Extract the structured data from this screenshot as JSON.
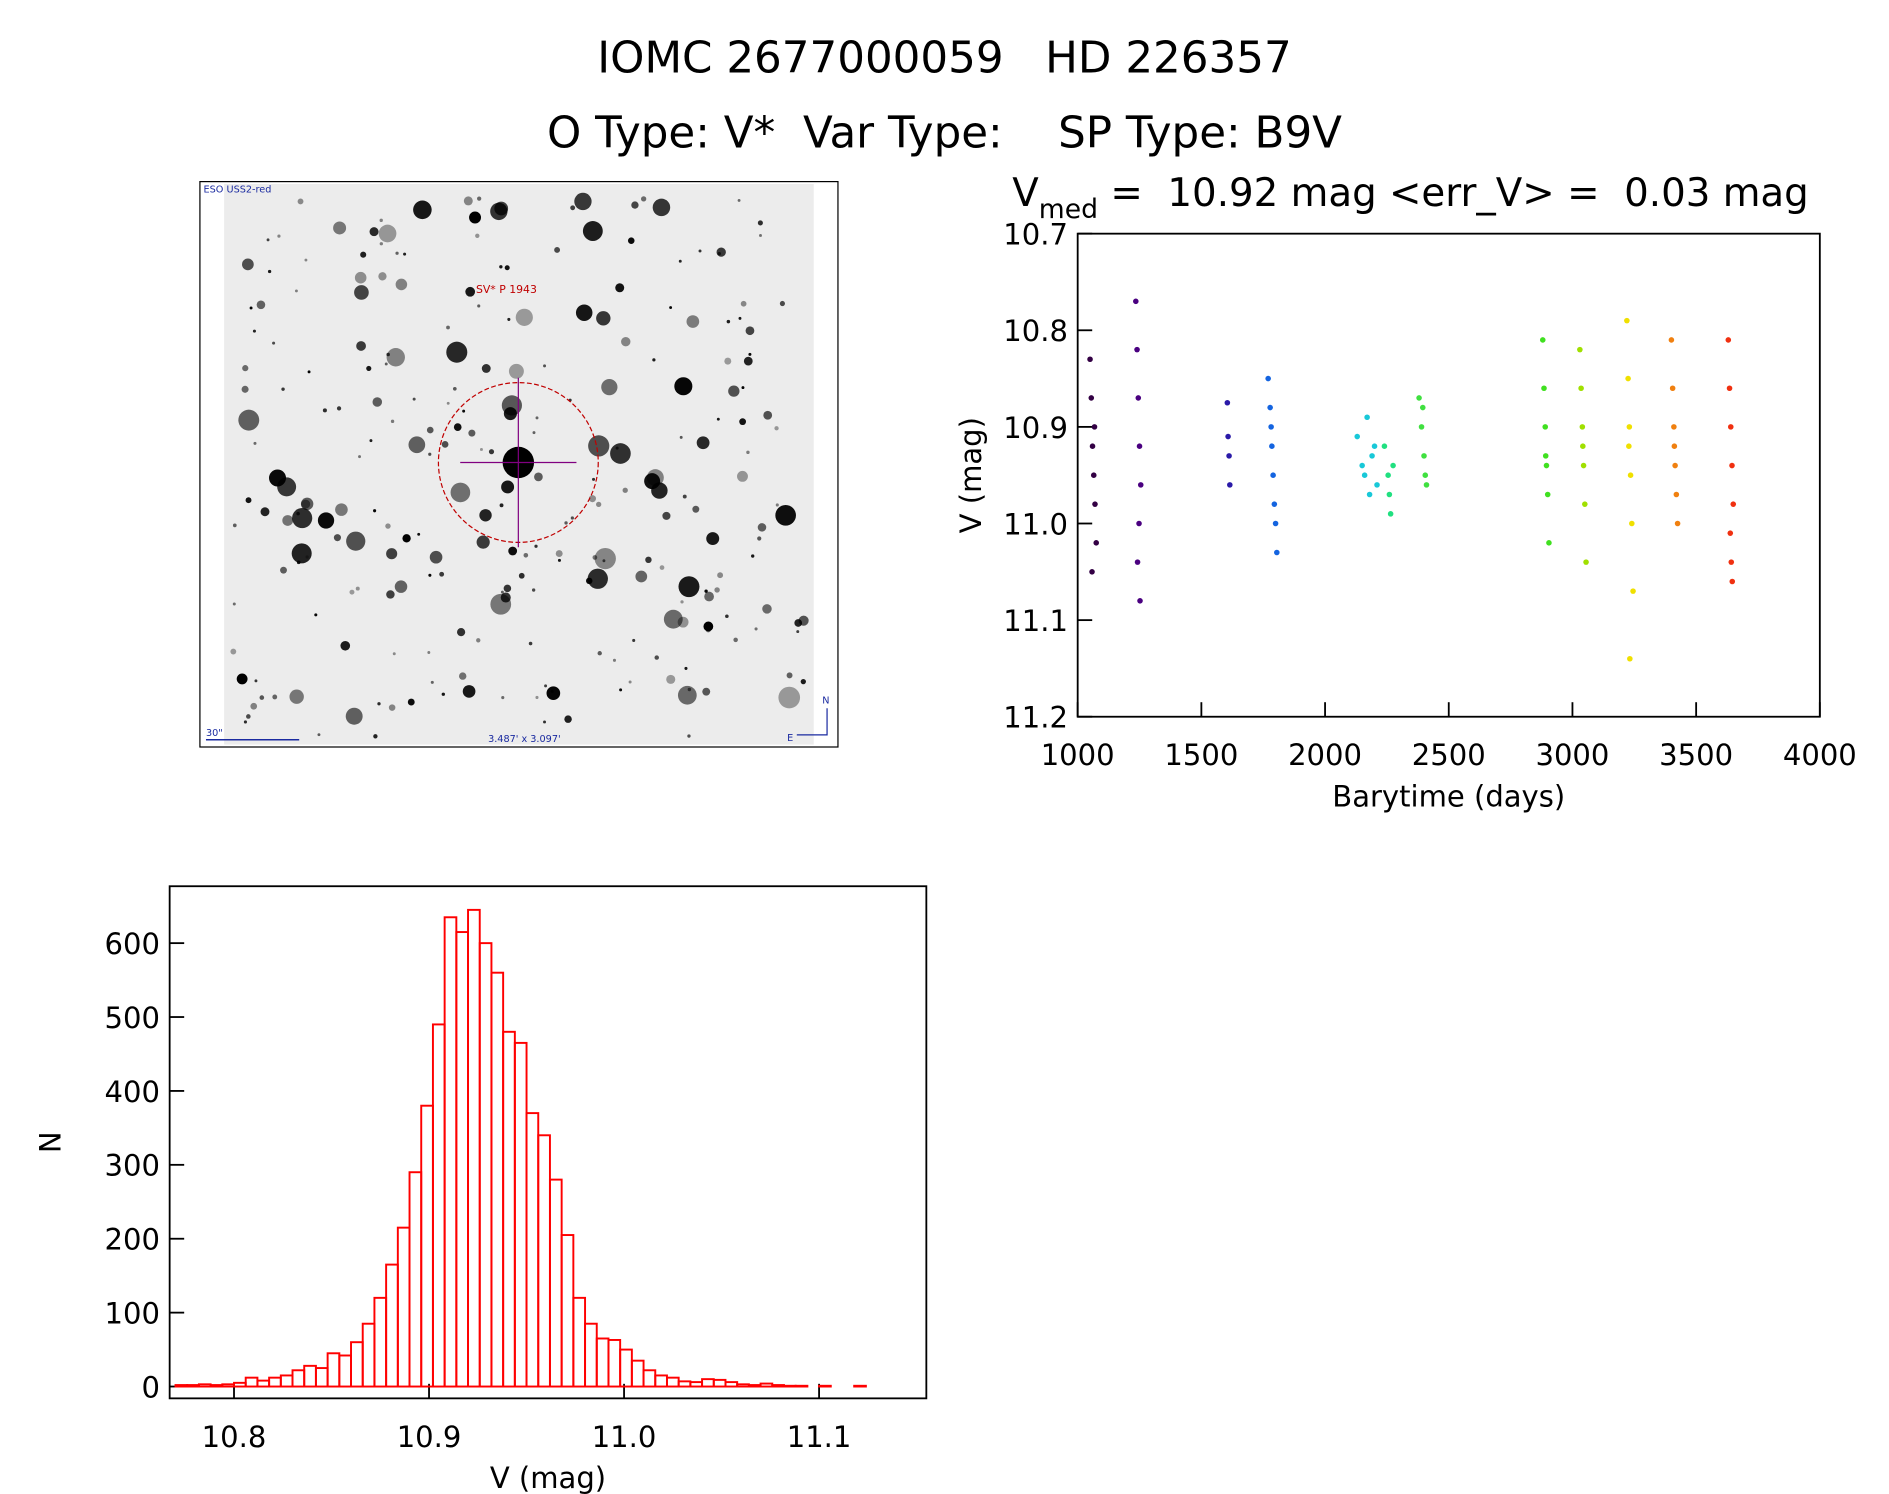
{
  "header": {
    "title": "IOMC 2677000059   HD 226357",
    "subtitle": "O Type: V*  Var Type:    SP Type: B9V"
  },
  "image": {
    "survey": "ESO USS2-red",
    "target": "SV* P 1943",
    "scale": "30\"",
    "size": "3.487' x 3.097'",
    "north": "N",
    "east": "E"
  },
  "chart_data": [
    {
      "type": "scatter",
      "title": {
        "symbol": "V",
        "subscript": "med",
        "text": " =  10.92 mag <err_V> =  0.03 mag"
      },
      "xlabel": "Barytime (days)",
      "ylabel": "V (mag)",
      "xlim": [
        1000,
        4000
      ],
      "ylim": [
        11.2,
        10.7
      ],
      "xticks": [
        1000,
        1500,
        2000,
        2500,
        3000,
        3500,
        4000
      ],
      "yticks": [
        10.7,
        10.8,
        10.9,
        {
          "value": 11,
          "label": "11.0"
        },
        11.1,
        11.2
      ],
      "series": [
        {
          "color": "#330044",
          "x": [
            1050,
            1055,
            1060,
            1065,
            1070,
            1075,
            1058,
            1068
          ],
          "values": [
            10.83,
            10.87,
            10.92,
            10.95,
            10.98,
            11.02,
            11.05,
            10.9
          ]
        },
        {
          "color": "#4a0080",
          "x": [
            1235,
            1240,
            1245,
            1250,
            1255,
            1248,
            1242,
            1252
          ],
          "values": [
            10.77,
            10.82,
            10.87,
            10.92,
            10.96,
            11.0,
            11.04,
            11.08
          ]
        },
        {
          "color": "#2a1aa8",
          "x": [
            1605,
            1608,
            1612,
            1615
          ],
          "values": [
            10.875,
            10.91,
            10.93,
            10.96
          ]
        },
        {
          "color": "#1464e0",
          "x": [
            1770,
            1778,
            1785,
            1790,
            1795,
            1800,
            1805,
            1782
          ],
          "values": [
            10.85,
            10.88,
            10.92,
            10.95,
            10.98,
            11.0,
            11.03,
            10.9
          ]
        },
        {
          "color": "#18c8d8",
          "x": [
            2130,
            2150,
            2170,
            2190,
            2210,
            2160,
            2200,
            2180
          ],
          "values": [
            10.91,
            10.94,
            10.89,
            10.93,
            10.96,
            10.95,
            10.92,
            10.97
          ]
        },
        {
          "color": "#20e080",
          "x": [
            2240,
            2255,
            2265,
            2275,
            2260
          ],
          "values": [
            10.92,
            10.95,
            10.99,
            10.94,
            10.97
          ]
        },
        {
          "color": "#40e040",
          "x": [
            2380,
            2390,
            2400,
            2410,
            2395,
            2405
          ],
          "values": [
            10.87,
            10.9,
            10.93,
            10.96,
            10.88,
            10.95
          ]
        },
        {
          "color": "#40e020",
          "x": [
            2880,
            2885,
            2890,
            2895,
            2900,
            2905,
            2892
          ],
          "values": [
            10.81,
            10.86,
            10.9,
            10.94,
            10.97,
            11.02,
            10.93
          ]
        },
        {
          "color": "#a0e000",
          "x": [
            3030,
            3035,
            3040,
            3045,
            3050,
            3055,
            3042
          ],
          "values": [
            10.82,
            10.86,
            10.9,
            10.94,
            10.98,
            11.04,
            10.92
          ]
        },
        {
          "color": "#f0e000",
          "x": [
            3220,
            3225,
            3230,
            3235,
            3240,
            3245,
            3232,
            3228
          ],
          "values": [
            10.79,
            10.85,
            10.9,
            10.95,
            11.0,
            11.07,
            11.14,
            10.92
          ]
        },
        {
          "color": "#f08010",
          "x": [
            3400,
            3405,
            3410,
            3415,
            3420,
            3425,
            3412
          ],
          "values": [
            10.81,
            10.86,
            10.9,
            10.94,
            10.97,
            11.0,
            10.92
          ]
        },
        {
          "color": "#f03010",
          "x": [
            3630,
            3635,
            3640,
            3645,
            3650,
            3638,
            3642,
            3646
          ],
          "values": [
            10.81,
            10.86,
            10.9,
            10.94,
            10.98,
            11.01,
            11.04,
            11.06
          ]
        }
      ]
    },
    {
      "type": "histogram",
      "xlabel": "V (mag)",
      "ylabel": "N",
      "color": "#ff0000",
      "xlim": [
        10.767,
        11.155
      ],
      "ylim": [
        -16,
        677
      ],
      "xticks": [
        10.8,
        10.9,
        {
          "value": 11,
          "label": "11.0"
        },
        11.1
      ],
      "yticks": [
        0,
        100,
        200,
        300,
        400,
        500,
        600
      ],
      "bins": [
        10.77,
        10.776,
        10.782,
        10.788,
        10.794,
        10.8,
        10.806,
        10.812,
        10.818,
        10.824,
        10.83,
        10.836,
        10.842,
        10.848,
        10.854,
        10.86,
        10.866,
        10.872,
        10.878,
        10.884,
        10.89,
        10.896,
        10.902,
        10.908,
        10.914,
        10.92,
        10.926,
        10.932,
        10.938,
        10.944,
        10.95,
        10.956,
        10.962,
        10.968,
        10.974,
        10.98,
        10.986,
        10.992,
        10.998,
        11.004,
        11.01,
        11.016,
        11.022,
        11.028,
        11.034,
        11.04,
        11.046,
        11.052,
        11.058,
        11.064,
        11.07,
        11.076,
        11.082,
        11.088,
        11.094,
        11.1,
        11.106,
        11.112,
        11.118,
        11.124,
        11.13,
        11.136,
        11.142,
        11.148,
        11.154
      ],
      "values": [
        2,
        2,
        3,
        2,
        3,
        5,
        12,
        8,
        12,
        15,
        22,
        28,
        25,
        45,
        42,
        60,
        85,
        120,
        165,
        215,
        290,
        380,
        490,
        635,
        615,
        645,
        600,
        560,
        480,
        465,
        370,
        340,
        280,
        205,
        120,
        85,
        65,
        63,
        50,
        35,
        22,
        15,
        12,
        7,
        6,
        10,
        9,
        6,
        3,
        2,
        4,
        2,
        1,
        1,
        0,
        1,
        0,
        0,
        1,
        0,
        0,
        0,
        0,
        0
      ]
    }
  ]
}
